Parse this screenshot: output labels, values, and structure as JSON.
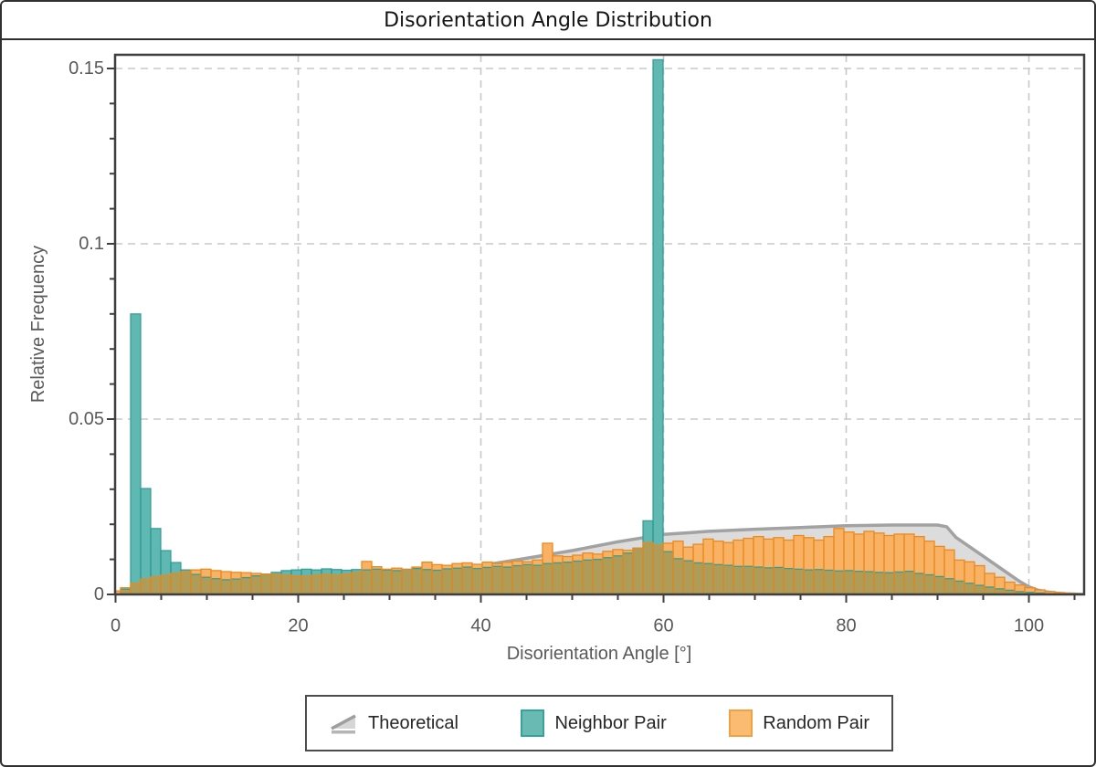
{
  "window": {
    "title": "Disorientation Angle Distribution"
  },
  "legend": {
    "items": [
      {
        "label": "Theoretical",
        "icon": "theoretical-wedge-icon",
        "color": "#a0a0a0"
      },
      {
        "label": "Neighbor Pair",
        "icon": "teal-swatch",
        "color": "#68bab3"
      },
      {
        "label": "Random Pair",
        "icon": "orange-swatch",
        "color": "#fbbc72"
      }
    ]
  },
  "chart_data": {
    "type": "bar",
    "subtype": "overlaid-histograms-with-theoretical-curve",
    "title": "Disorientation Angle Distribution",
    "xlabel": "Disorientation Angle [°]",
    "ylabel": "Relative Frequency",
    "xlim": [
      0,
      106
    ],
    "ylim": [
      0,
      0.1537
    ],
    "x_major_ticks": [
      0,
      20,
      40,
      60,
      80,
      100
    ],
    "x_tick_labels": [
      "0",
      "20",
      "40",
      "60",
      "80",
      "100"
    ],
    "x_minor_tick_step": 5,
    "y_major_ticks": [
      0,
      0.05,
      0.1,
      0.15
    ],
    "y_tick_labels": [
      "0",
      "0.05",
      "0.1",
      "0.15"
    ],
    "y_minor_tick_step": 0.01,
    "grid": "dashed-at-major-ticks",
    "grid_color": "#c8c8c8",
    "frame_color": "#3f3f3f",
    "legend_position": "bottom-outside",
    "bin_width": 1.1,
    "bin_origin": -0.55,
    "overlap_color": "#ae9c58",
    "series": [
      {
        "name": "Theoretical",
        "type": "area-line",
        "line_color": "#a2a2a2",
        "fill_color": "#dcdcdc",
        "points": [
          [
            0,
            0
          ],
          [
            5,
            0.0002
          ],
          [
            10,
            0.0008
          ],
          [
            15,
            0.0019
          ],
          [
            20,
            0.0033
          ],
          [
            25,
            0.0043
          ],
          [
            30,
            0.0053
          ],
          [
            35,
            0.0063
          ],
          [
            40,
            0.0082
          ],
          [
            45,
            0.0103
          ],
          [
            50,
            0.0125
          ],
          [
            55,
            0.015
          ],
          [
            60,
            0.0171
          ],
          [
            65,
            0.018
          ],
          [
            70,
            0.0186
          ],
          [
            75,
            0.0191
          ],
          [
            80,
            0.0196
          ],
          [
            85,
            0.0198
          ],
          [
            90,
            0.0198
          ],
          [
            91,
            0.0193
          ],
          [
            92,
            0.0163
          ],
          [
            93,
            0.0145
          ],
          [
            94,
            0.0127
          ],
          [
            95,
            0.0109
          ],
          [
            96,
            0.0091
          ],
          [
            97,
            0.0073
          ],
          [
            98,
            0.0055
          ],
          [
            99,
            0.0037
          ],
          [
            100,
            0.0022
          ],
          [
            101,
            0.0012
          ],
          [
            102,
            0.0007
          ],
          [
            103,
            0.0004
          ],
          [
            104,
            0.0002
          ],
          [
            105,
            0.0001
          ],
          [
            106,
            0
          ]
        ]
      },
      {
        "name": "Neighbor Pair",
        "type": "histogram",
        "fill_color": "#5fb8b1",
        "border_color": "#2f9a93",
        "values": [
          0.0002,
          0.0015,
          0.08,
          0.0302,
          0.0188,
          0.0125,
          0.0091,
          0.007,
          0.0057,
          0.0049,
          0.0045,
          0.0042,
          0.0044,
          0.0048,
          0.0053,
          0.0058,
          0.0063,
          0.0068,
          0.007,
          0.0072,
          0.007,
          0.0073,
          0.0071,
          0.0069,
          0.0071,
          0.007,
          0.0072,
          0.007,
          0.0068,
          0.0072,
          0.0074,
          0.0071,
          0.0069,
          0.0073,
          0.0075,
          0.0078,
          0.0074,
          0.0077,
          0.008,
          0.0078,
          0.0082,
          0.0085,
          0.0083,
          0.0088,
          0.009,
          0.0092,
          0.0095,
          0.0098,
          0.01,
          0.0105,
          0.011,
          0.0118,
          0.0132,
          0.021,
          0.1525,
          0.0122,
          0.0102,
          0.0096,
          0.009,
          0.0088,
          0.0085,
          0.0083,
          0.008,
          0.008,
          0.0078,
          0.0076,
          0.0077,
          0.0074,
          0.0072,
          0.007,
          0.0071,
          0.0069,
          0.0067,
          0.0068,
          0.0066,
          0.0065,
          0.0063,
          0.0062,
          0.0064,
          0.0066,
          0.006,
          0.0056,
          0.0051,
          0.0045,
          0.0038,
          0.0032,
          0.0026,
          0.0021,
          0.0016,
          0.0012,
          0.0008,
          0.0006,
          0.0004,
          0.0002,
          0.0001,
          0.0001
        ]
      },
      {
        "name": "Random Pair",
        "type": "histogram",
        "fill_color": "#f9b164",
        "border_color": "#ea8a1f",
        "values": [
          0.001,
          0.0019,
          0.0032,
          0.0044,
          0.005,
          0.0055,
          0.006,
          0.0065,
          0.007,
          0.0072,
          0.0068,
          0.0065,
          0.0063,
          0.0062,
          0.006,
          0.0058,
          0.0057,
          0.0055,
          0.0053,
          0.0052,
          0.0055,
          0.0057,
          0.0055,
          0.0058,
          0.0062,
          0.0094,
          0.0079,
          0.0072,
          0.0075,
          0.0071,
          0.0078,
          0.0092,
          0.0085,
          0.0083,
          0.0088,
          0.009,
          0.0086,
          0.0092,
          0.0088,
          0.0092,
          0.0095,
          0.0093,
          0.0098,
          0.0146,
          0.011,
          0.0108,
          0.0112,
          0.0118,
          0.0115,
          0.0123,
          0.0128,
          0.0126,
          0.0132,
          0.0148,
          0.014,
          0.0146,
          0.0152,
          0.0135,
          0.0143,
          0.0158,
          0.0152,
          0.0148,
          0.0155,
          0.016,
          0.0165,
          0.0158,
          0.0162,
          0.0155,
          0.0168,
          0.0162,
          0.0155,
          0.0165,
          0.0188,
          0.0178,
          0.0172,
          0.018,
          0.0175,
          0.0168,
          0.0172,
          0.0172,
          0.0165,
          0.0152,
          0.0137,
          0.0127,
          0.0098,
          0.0093,
          0.0082,
          0.006,
          0.0049,
          0.0035,
          0.0027,
          0.0019,
          0.0013,
          0.0008,
          0.0005,
          0.0003
        ]
      }
    ]
  }
}
